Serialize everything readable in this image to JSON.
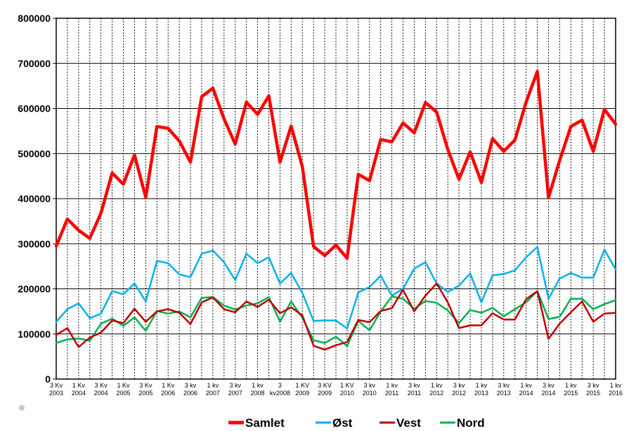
{
  "chart_data": {
    "type": "line",
    "ylim": [
      0,
      800000
    ],
    "y_ticks": [
      "0",
      "100000",
      "200000",
      "300000",
      "400000",
      "500000",
      "600000",
      "700000",
      "800000"
    ],
    "x_ticks": [
      {
        "i": 0,
        "l1": "3 Kv",
        "l2": "2003"
      },
      {
        "i": 2,
        "l1": "1 Kv",
        "l2": "2004"
      },
      {
        "i": 4,
        "l1": "3 Kv",
        "l2": "2004"
      },
      {
        "i": 6,
        "l1": "1 Kv",
        "l2": "2005"
      },
      {
        "i": 8,
        "l1": "3 Kv",
        "l2": "2005"
      },
      {
        "i": 10,
        "l1": "1 Kv",
        "l2": "2006"
      },
      {
        "i": 12,
        "l1": "3 kv",
        "l2": "2006"
      },
      {
        "i": 14,
        "l1": "1 kv",
        "l2": "2007"
      },
      {
        "i": 16,
        "l1": "3 kv",
        "l2": "2007"
      },
      {
        "i": 18,
        "l1": "1 kv",
        "l2": "2008"
      },
      {
        "i": 20,
        "l1": "3",
        "l2": "kv2008"
      },
      {
        "i": 22,
        "l1": "1 KV",
        "l2": "2009"
      },
      {
        "i": 24,
        "l1": "3 KV",
        "l2": "2009"
      },
      {
        "i": 26,
        "l1": "1 KV",
        "l2": "2010"
      },
      {
        "i": 28,
        "l1": "3 kv",
        "l2": "2010"
      },
      {
        "i": 30,
        "l1": "1 kv",
        "l2": "2011"
      },
      {
        "i": 32,
        "l1": "3 kv",
        "l2": "2011"
      },
      {
        "i": 34,
        "l1": "1 kv",
        "l2": "2012"
      },
      {
        "i": 36,
        "l1": "3 kv",
        "l2": "2012"
      },
      {
        "i": 38,
        "l1": "1 kv",
        "l2": "2013"
      },
      {
        "i": 40,
        "l1": "3 kv",
        "l2": "2013"
      },
      {
        "i": 42,
        "l1": "1 kv",
        "l2": "2014"
      },
      {
        "i": 44,
        "l1": "3 kv",
        "l2": "2014"
      },
      {
        "i": 46,
        "l1": "1 kv",
        "l2": "2015"
      },
      {
        "i": 48,
        "l1": "3 kv",
        "l2": "2015"
      },
      {
        "i": 50,
        "l1": "1 kv",
        "l2": "2016"
      }
    ],
    "grid": true,
    "legend_position": "bottom",
    "series": [
      {
        "name": "Samlet",
        "color": "#ff0000",
        "values": [
          295000,
          355000,
          330000,
          312000,
          368000,
          457000,
          432000,
          497000,
          403000,
          560000,
          556000,
          528000,
          481000,
          626000,
          645000,
          577000,
          521000,
          614000,
          587000,
          628000,
          481000,
          561000,
          471000,
          294000,
          274000,
          297000,
          268000,
          454000,
          440000,
          531000,
          526000,
          568000,
          546000,
          613000,
          592000,
          509000,
          443000,
          504000,
          436000,
          533000,
          505000,
          530000,
          614000,
          682000,
          402000,
          485000,
          560000,
          574000,
          505000,
          598000,
          565000
        ]
      },
      {
        "name": "Øst",
        "color": "#00b0f0",
        "values": [
          127000,
          155000,
          168000,
          135000,
          145000,
          195000,
          188000,
          212000,
          172000,
          262000,
          257000,
          232000,
          226000,
          278000,
          285000,
          259000,
          219000,
          278000,
          257000,
          270000,
          212000,
          235000,
          191000,
          129000,
          130000,
          130000,
          112000,
          192000,
          204000,
          229000,
          185000,
          200000,
          245000,
          259000,
          212000,
          193000,
          207000,
          234000,
          170000,
          230000,
          233000,
          241000,
          270000,
          293000,
          178000,
          223000,
          235000,
          225000,
          225000,
          287000,
          243000
        ]
      },
      {
        "name": "Vest",
        "color": "#c00000",
        "values": [
          98000,
          113000,
          71000,
          92000,
          103000,
          130000,
          124000,
          156000,
          127000,
          150000,
          155000,
          147000,
          122000,
          170000,
          181000,
          155000,
          148000,
          172000,
          160000,
          176000,
          146000,
          159000,
          141000,
          74000,
          65000,
          75000,
          82000,
          131000,
          126000,
          151000,
          157000,
          198000,
          150000,
          185000,
          212000,
          170000,
          113000,
          119000,
          119000,
          146000,
          132000,
          132000,
          177000,
          195000,
          89000,
          123000,
          148000,
          172000,
          127000,
          145000,
          147000
        ]
      },
      {
        "name": "Nord",
        "color": "#00b050",
        "values": [
          80000,
          88000,
          90000,
          85000,
          123000,
          134000,
          118000,
          137000,
          107000,
          151000,
          145000,
          150000,
          137000,
          180000,
          182000,
          163000,
          154000,
          163000,
          168000,
          182000,
          127000,
          172000,
          136000,
          86000,
          80000,
          94000,
          73000,
          129000,
          108000,
          150000,
          183000,
          178000,
          156000,
          173000,
          169000,
          152000,
          124000,
          153000,
          147000,
          158000,
          139000,
          155000,
          170000,
          195000,
          133000,
          138000,
          178000,
          178000,
          155000,
          166000,
          175000
        ]
      }
    ]
  }
}
